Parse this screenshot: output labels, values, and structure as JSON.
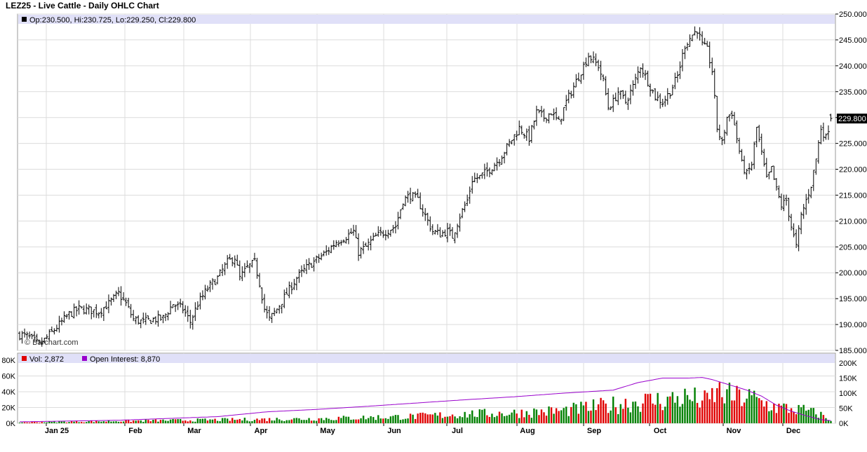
{
  "title": "LEZ25 - Live Cattle - Daily OHLC Chart",
  "watermark": "Barchart.com",
  "ohlc_legend": "Op:230.500, Hi:230.725, Lo:229.250, Cl:229.800",
  "last_price_label": "229.800",
  "volume_legend": {
    "vol": "Vol: 2,872",
    "oi": "Open Interest: 8,870"
  },
  "colors": {
    "up_volume": "#008000",
    "down_volume": "#e00000",
    "open_interest": "#9900cc",
    "legend_bar": "#e0e0f8",
    "grid": "#dcdcdc",
    "price_bars": "#000000"
  },
  "chart_data": [
    {
      "type": "ohlc",
      "title": "LEZ25 - Live Cattle - Daily OHLC Chart",
      "ylim": [
        185,
        250
      ],
      "y_ticks": [
        "250.000",
        "245.000",
        "240.000",
        "235.000",
        "230.000",
        "225.000",
        "220.000",
        "215.000",
        "210.000",
        "205.000",
        "200.000",
        "195.000",
        "190.000",
        "185.000"
      ],
      "x_labels": [
        "Jan 25",
        "Feb",
        "Mar",
        "Apr",
        "May",
        "Jun",
        "Jul",
        "Aug",
        "Sep",
        "Oct",
        "Nov",
        "Dec"
      ],
      "last": {
        "open": 230.5,
        "high": 230.725,
        "low": 229.25,
        "close": 229.8
      },
      "close_path": [
        [
          1,
          188
        ],
        [
          4,
          187.5
        ],
        [
          8,
          186
        ],
        [
          12,
          188
        ],
        [
          16,
          190
        ],
        [
          20,
          192
        ],
        [
          24,
          193
        ],
        [
          28,
          192.8
        ],
        [
          32,
          192.5
        ],
        [
          36,
          194
        ],
        [
          40,
          196
        ],
        [
          43,
          194
        ],
        [
          46,
          191
        ],
        [
          50,
          190.5
        ],
        [
          54,
          191
        ],
        [
          58,
          191.2
        ],
        [
          62,
          194
        ],
        [
          66,
          193
        ],
        [
          69,
          190.5
        ],
        [
          72,
          194
        ],
        [
          76,
          197
        ],
        [
          80,
          199
        ],
        [
          84,
          202
        ],
        [
          87,
          203
        ],
        [
          89,
          199
        ],
        [
          92,
          201
        ],
        [
          95,
          202
        ],
        [
          97,
          198
        ],
        [
          99,
          193
        ],
        [
          101,
          191
        ],
        [
          104,
          193
        ],
        [
          108,
          196
        ],
        [
          112,
          199
        ],
        [
          116,
          201
        ],
        [
          120,
          202.5
        ],
        [
          124,
          204
        ],
        [
          128,
          206
        ],
        [
          132,
          207
        ],
        [
          135,
          208
        ],
        [
          137,
          204
        ],
        [
          140,
          205
        ],
        [
          144,
          207
        ],
        [
          148,
          208
        ],
        [
          152,
          209
        ],
        [
          155,
          214
        ],
        [
          158,
          215
        ],
        [
          161,
          214
        ],
        [
          164,
          211
        ],
        [
          167,
          208
        ],
        [
          170,
          207.5
        ],
        [
          173,
          208
        ],
        [
          175,
          207
        ],
        [
          178,
          211
        ],
        [
          181,
          214
        ],
        [
          183,
          218
        ],
        [
          186,
          218.5
        ],
        [
          190,
          220
        ],
        [
          194,
          222
        ],
        [
          198,
          225
        ],
        [
          202,
          228
        ],
        [
          206,
          226
        ],
        [
          209,
          231
        ],
        [
          212,
          230
        ],
        [
          215,
          231
        ],
        [
          218,
          229
        ],
        [
          221,
          233
        ],
        [
          224,
          236
        ],
        [
          227,
          239
        ],
        [
          230,
          242
        ],
        [
          232,
          241
        ],
        [
          234,
          240
        ],
        [
          236,
          237
        ],
        [
          238,
          232
        ],
        [
          240,
          233
        ],
        [
          242,
          235
        ],
        [
          245,
          233
        ],
        [
          248,
          236
        ],
        [
          251,
          240
        ],
        [
          254,
          237
        ],
        [
          257,
          234
        ],
        [
          260,
          233
        ],
        [
          263,
          235
        ],
        [
          266,
          238
        ],
        [
          269,
          244
        ],
        [
          272,
          246
        ],
        [
          274,
          247
        ],
        [
          276,
          244
        ],
        [
          278,
          243
        ],
        [
          280,
          239
        ],
        [
          282,
          228
        ],
        [
          284,
          225
        ],
        [
          286,
          230
        ],
        [
          288,
          231
        ],
        [
          290,
          226
        ],
        [
          292,
          221
        ],
        [
          294,
          219
        ],
        [
          296,
          221
        ],
        [
          298,
          228
        ],
        [
          300,
          223
        ],
        [
          302,
          218
        ],
        [
          304,
          220
        ],
        [
          306,
          216
        ],
        [
          308,
          213
        ],
        [
          310,
          214
        ],
        [
          312,
          209
        ],
        [
          314,
          205
        ],
        [
          316,
          211
        ],
        [
          318,
          214
        ],
        [
          320,
          217
        ],
        [
          322,
          222
        ],
        [
          324,
          228
        ],
        [
          326,
          226
        ],
        [
          328,
          230
        ]
      ]
    },
    {
      "type": "bar",
      "title": "Vol: 2,872 / Open Interest: 8,870",
      "ylim": [
        0,
        80000
      ],
      "y_ticks_left": [
        "80K",
        "60K",
        "40K",
        "20K",
        "0K"
      ],
      "y_ticks_right": [
        "200K",
        "150K",
        "100K",
        "50K",
        "0K"
      ],
      "volume_envelope": [
        [
          1,
          1500
        ],
        [
          40,
          4000
        ],
        [
          80,
          6000
        ],
        [
          120,
          8000
        ],
        [
          160,
          12000
        ],
        [
          180,
          16000
        ],
        [
          200,
          18000
        ],
        [
          220,
          22000
        ],
        [
          240,
          32000
        ],
        [
          250,
          38000
        ],
        [
          260,
          40000
        ],
        [
          270,
          45000
        ],
        [
          278,
          38000
        ],
        [
          282,
          55000
        ],
        [
          288,
          46000
        ],
        [
          296,
          44000
        ],
        [
          300,
          36000
        ],
        [
          306,
          28000
        ],
        [
          312,
          25000
        ],
        [
          318,
          22000
        ],
        [
          324,
          15000
        ],
        [
          328,
          4000
        ]
      ],
      "open_interest": [
        [
          1,
          5000
        ],
        [
          40,
          10000
        ],
        [
          80,
          22000
        ],
        [
          100,
          38000
        ],
        [
          120,
          46000
        ],
        [
          140,
          56000
        ],
        [
          160,
          67000
        ],
        [
          180,
          78000
        ],
        [
          200,
          88000
        ],
        [
          220,
          100000
        ],
        [
          240,
          110000
        ],
        [
          250,
          135000
        ],
        [
          260,
          150000
        ],
        [
          270,
          150000
        ],
        [
          276,
          152000
        ],
        [
          280,
          145000
        ],
        [
          286,
          130000
        ],
        [
          294,
          110000
        ],
        [
          300,
          90000
        ],
        [
          306,
          60000
        ],
        [
          312,
          40000
        ],
        [
          318,
          25000
        ],
        [
          324,
          12000
        ],
        [
          328,
          8870
        ]
      ],
      "last": {
        "volume": 2872,
        "open_interest": 8870
      }
    }
  ]
}
